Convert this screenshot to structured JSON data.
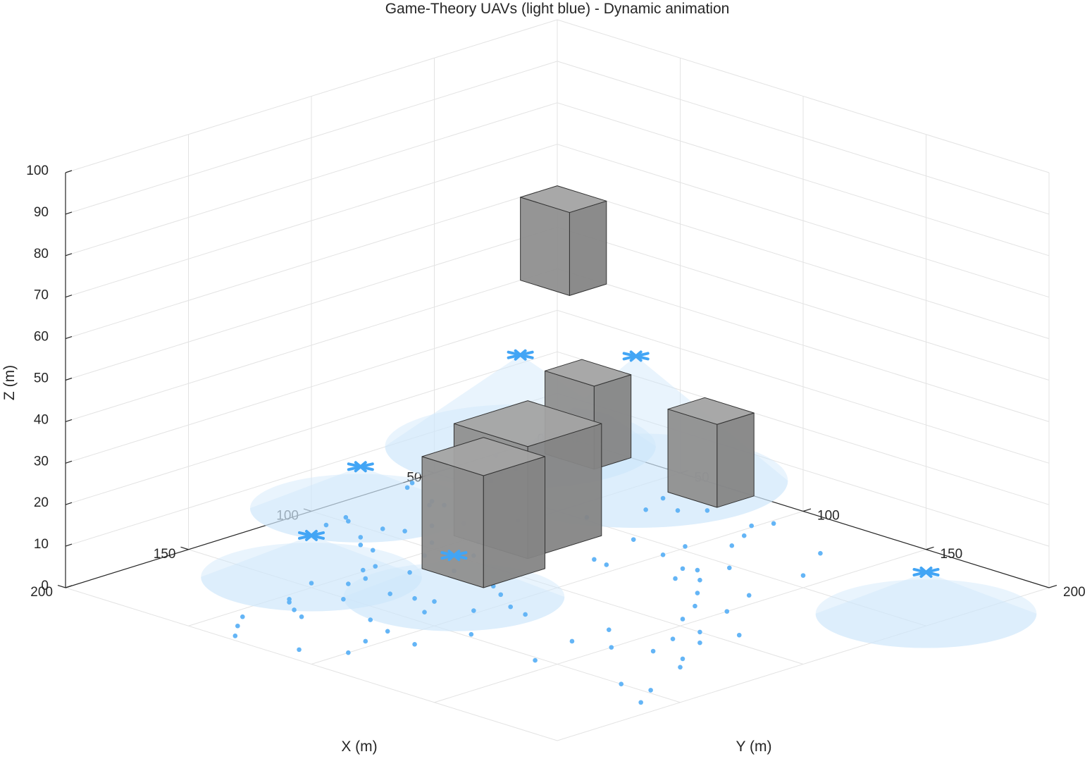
{
  "chart_data": {
    "type": "scatter3d",
    "title": "Game-Theory UAVs (light blue) - Dynamic animation",
    "xlabel": "X (m)",
    "ylabel": "Y (m)",
    "zlabel": "Z (m)",
    "xlim": [
      0,
      200
    ],
    "ylim": [
      0,
      200
    ],
    "zlim": [
      0,
      100
    ],
    "xticks": [
      0,
      50,
      100,
      150,
      200
    ],
    "yticks": [
      0,
      50,
      100,
      150,
      200
    ],
    "zticks": [
      0,
      10,
      20,
      30,
      40,
      50,
      60,
      70,
      80,
      90,
      100
    ],
    "grid": true,
    "colors": {
      "uav": "#42a5f5",
      "user": "#64b5f6",
      "coverage": "#cfe6fb",
      "building": "#8c8c8c"
    },
    "uavs": [
      {
        "x": 15,
        "y": 0,
        "z": 22
      },
      {
        "x": 14,
        "y": 46,
        "z": 30
      },
      {
        "x": 88,
        "y": 8,
        "z": 10
      },
      {
        "x": 143,
        "y": 43,
        "z": 10
      },
      {
        "x": 127,
        "y": 85,
        "z": 10
      },
      {
        "x": 42,
        "y": 192,
        "z": 10
      }
    ],
    "buildings": [
      {
        "x": [
          57,
          87
        ],
        "y": [
          45,
          75
        ],
        "z": [
          0,
          27
        ]
      },
      {
        "x": [
          90,
          115
        ],
        "y": [
          60,
          85
        ],
        "z": [
          0,
          27
        ]
      },
      {
        "x": [
          0,
          15
        ],
        "y": [
          10,
          30
        ],
        "z": [
          0,
          20
        ]
      },
      {
        "x": [
          0,
          15
        ],
        "y": [
          60,
          80
        ],
        "z": [
          0,
          20
        ]
      },
      {
        "x": [
          0,
          15
        ],
        "y": [
          0,
          20
        ],
        "z": [
          40,
          60
        ]
      }
    ],
    "users": [
      {
        "x": 26,
        "y": 1
      },
      {
        "x": 65,
        "y": 4
      },
      {
        "x": 61,
        "y": 2
      },
      {
        "x": 36,
        "y": 13
      },
      {
        "x": 31,
        "y": 14
      },
      {
        "x": 43,
        "y": 16
      },
      {
        "x": 44,
        "y": 17
      },
      {
        "x": 69,
        "y": 18
      },
      {
        "x": 72,
        "y": 20
      },
      {
        "x": 69,
        "y": 23
      },
      {
        "x": 97,
        "y": 11
      },
      {
        "x": 99,
        "y": 14
      },
      {
        "x": 106,
        "y": 12
      },
      {
        "x": 97,
        "y": 26
      },
      {
        "x": 107,
        "y": 27
      },
      {
        "x": 94,
        "y": 32
      },
      {
        "x": 85,
        "y": 34
      },
      {
        "x": 112,
        "y": 32
      },
      {
        "x": 113,
        "y": 38
      },
      {
        "x": 77,
        "y": 39
      },
      {
        "x": 96,
        "y": 45
      },
      {
        "x": 64,
        "y": 48
      },
      {
        "x": 86,
        "y": 54
      },
      {
        "x": 106,
        "y": 52
      },
      {
        "x": 123,
        "y": 49
      },
      {
        "x": 128,
        "y": 49
      },
      {
        "x": 133,
        "y": 55
      },
      {
        "x": 140,
        "y": 55
      },
      {
        "x": 147,
        "y": 47
      },
      {
        "x": 162,
        "y": 53
      },
      {
        "x": 164,
        "y": 55
      },
      {
        "x": 168,
        "y": 61
      },
      {
        "x": 183,
        "y": 55
      },
      {
        "x": 190,
        "y": 60
      },
      {
        "x": 197,
        "y": 66
      },
      {
        "x": 171,
        "y": 67
      },
      {
        "x": 151,
        "y": 64
      },
      {
        "x": 138,
        "y": 70
      },
      {
        "x": 136,
        "y": 78
      },
      {
        "x": 134,
        "y": 84
      },
      {
        "x": 143,
        "y": 89
      },
      {
        "x": 159,
        "y": 83
      },
      {
        "x": 163,
        "y": 94
      },
      {
        "x": 174,
        "y": 96
      },
      {
        "x": 193,
        "y": 88
      },
      {
        "x": 185,
        "y": 100
      },
      {
        "x": 166,
        "y": 108
      },
      {
        "x": 148,
        "y": 113
      },
      {
        "x": 132,
        "y": 98
      },
      {
        "x": 124,
        "y": 111
      },
      {
        "x": 122,
        "y": 103
      },
      {
        "x": 116,
        "y": 93
      },
      {
        "x": 112,
        "y": 86
      },
      {
        "x": 96,
        "y": 62
      },
      {
        "x": 110,
        "y": 68
      },
      {
        "x": 120,
        "y": 60
      },
      {
        "x": 20,
        "y": 63
      },
      {
        "x": 31,
        "y": 67
      },
      {
        "x": 19,
        "y": 80
      },
      {
        "x": 25,
        "y": 74
      },
      {
        "x": 48,
        "y": 60
      },
      {
        "x": 14,
        "y": 102
      },
      {
        "x": 20,
        "y": 99
      },
      {
        "x": 28,
        "y": 104
      },
      {
        "x": 37,
        "y": 108
      },
      {
        "x": 24,
        "y": 131
      },
      {
        "x": 42,
        "y": 142
      },
      {
        "x": 66,
        "y": 144
      },
      {
        "x": 75,
        "y": 132
      },
      {
        "x": 84,
        "y": 140
      },
      {
        "x": 81,
        "y": 150
      },
      {
        "x": 95,
        "y": 146
      },
      {
        "x": 100,
        "y": 158
      },
      {
        "x": 94,
        "y": 168
      },
      {
        "x": 107,
        "y": 165
      },
      {
        "x": 128,
        "y": 150
      },
      {
        "x": 122,
        "y": 161
      },
      {
        "x": 121,
        "y": 172
      },
      {
        "x": 127,
        "y": 177
      },
      {
        "x": 150,
        "y": 176
      },
      {
        "x": 148,
        "y": 186
      },
      {
        "x": 158,
        "y": 192
      },
      {
        "x": 152,
        "y": 143
      },
      {
        "x": 132,
        "y": 138
      },
      {
        "x": 117,
        "y": 138
      },
      {
        "x": 110,
        "y": 157
      },
      {
        "x": 60,
        "y": 117
      },
      {
        "x": 62,
        "y": 113
      },
      {
        "x": 52,
        "y": 122
      },
      {
        "x": 66,
        "y": 124
      },
      {
        "x": 70,
        "y": 118
      },
      {
        "x": 57,
        "y": 100
      },
      {
        "x": 74,
        "y": 89
      },
      {
        "x": 75,
        "y": 95
      },
      {
        "x": 53,
        "y": 84
      },
      {
        "x": 47,
        "y": 99
      }
    ]
  }
}
